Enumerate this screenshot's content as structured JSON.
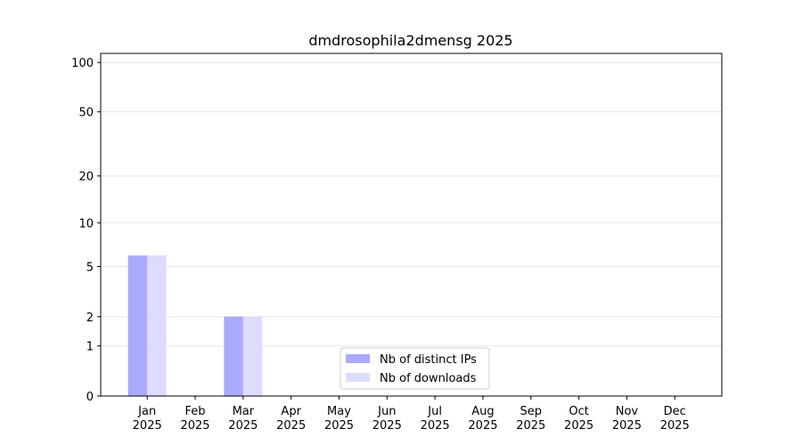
{
  "chart_data": {
    "type": "bar",
    "title": "dmdrosophila2dmensg 2025",
    "categories": [
      "Jan 2025",
      "Feb 2025",
      "Mar 2025",
      "Apr 2025",
      "May 2025",
      "Jun 2025",
      "Jul 2025",
      "Aug 2025",
      "Sep 2025",
      "Oct 2025",
      "Nov 2025",
      "Dec 2025"
    ],
    "series": [
      {
        "name": "Nb of distinct IPs",
        "color": "#aaaaff",
        "values": [
          6,
          0,
          2,
          0,
          0,
          0,
          0,
          0,
          0,
          0,
          0,
          0
        ]
      },
      {
        "name": "Nb of downloads",
        "color": "#dcdcfc",
        "values": [
          6,
          0,
          2,
          0,
          0,
          0,
          0,
          0,
          0,
          0,
          0,
          0
        ]
      }
    ],
    "yscale": "log1p",
    "ylim": [
      0,
      113.5
    ],
    "yticks": [
      0,
      1,
      2,
      5,
      10,
      20,
      50,
      100
    ],
    "grid": true,
    "legend": "lower center"
  }
}
